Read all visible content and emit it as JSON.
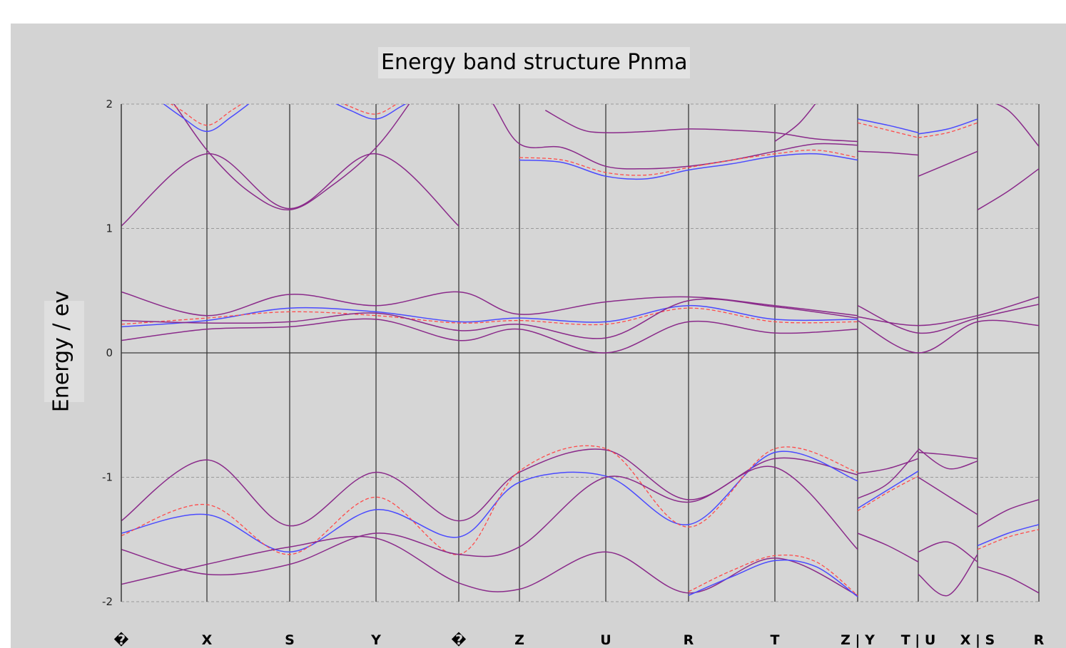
{
  "chart_data": {
    "type": "line",
    "title": "Energy band structure Pnma",
    "xlabel": "",
    "ylabel": "Energy / ev",
    "ylim": [
      -2,
      2
    ],
    "yticks": [
      "2",
      "1",
      "0",
      "-1",
      "-2"
    ],
    "ytick_values": [
      2,
      1,
      0,
      -1,
      -2
    ],
    "grid": "horizontal dashed",
    "legend": "none",
    "colors": {
      "series_a": "#4a4aff",
      "series_b": "#ff4a4a",
      "overlap": "#8a2a8a"
    },
    "kpath_labels": [
      "�",
      "X",
      "S",
      "Y",
      "�",
      "Z",
      "U",
      "R",
      "T",
      "Z | Y",
      "T | U",
      "X | S",
      "R"
    ],
    "kpath_positions": [
      0,
      1,
      2,
      3,
      4,
      5,
      6,
      7,
      8,
      9,
      10,
      11,
      12
    ],
    "bands": [
      {
        "line": "solid",
        "color": "overlap",
        "x": [
          0,
          1,
          2,
          3,
          4
        ],
        "y": [
          1.02,
          1.6,
          1.16,
          1.6,
          1.02
        ]
      },
      {
        "line": "solid",
        "color": "overlap",
        "x": [
          0,
          0.5,
          1,
          1.5,
          2,
          2.5,
          3,
          3.4,
          3.7
        ],
        "y": [
          2.4,
          2.1,
          1.63,
          1.3,
          1.15,
          1.35,
          1.65,
          2.0,
          2.3
        ]
      },
      {
        "line": "solid",
        "color": "series_a",
        "x": [
          0.4,
          0.7,
          1,
          1.3,
          1.6
        ],
        "y": [
          2.05,
          1.9,
          1.78,
          1.9,
          2.05
        ]
      },
      {
        "line": "dashed",
        "color": "series_b",
        "x": [
          0.4,
          0.7,
          1,
          1.3,
          1.6
        ],
        "y": [
          2.08,
          1.95,
          1.83,
          1.95,
          2.08
        ]
      },
      {
        "line": "solid",
        "color": "series_a",
        "x": [
          2.4,
          2.7,
          3,
          3.3,
          3.6
        ],
        "y": [
          2.05,
          1.95,
          1.88,
          1.98,
          2.1
        ]
      },
      {
        "line": "dashed",
        "color": "series_b",
        "x": [
          2.4,
          2.7,
          3,
          3.3,
          3.6
        ],
        "y": [
          2.08,
          1.98,
          1.92,
          2.02,
          2.12
        ]
      },
      {
        "line": "solid",
        "color": "overlap",
        "x": [
          4,
          4.5,
          5,
          5.5,
          6,
          6.5,
          7,
          7.5,
          8,
          8.5,
          9
        ],
        "y": [
          2.3,
          2.05,
          1.68,
          1.65,
          1.5,
          1.48,
          1.5,
          1.55,
          1.62,
          1.68,
          1.67
        ]
      },
      {
        "line": "solid",
        "color": "series_a",
        "x": [
          5,
          5.5,
          6,
          6.5,
          7,
          7.5,
          8,
          8.5,
          9
        ],
        "y": [
          1.55,
          1.53,
          1.42,
          1.4,
          1.47,
          1.52,
          1.58,
          1.6,
          1.55
        ]
      },
      {
        "line": "dashed",
        "color": "series_b",
        "x": [
          5,
          5.5,
          6,
          6.5,
          7,
          7.5,
          8,
          8.5,
          9
        ],
        "y": [
          1.57,
          1.55,
          1.45,
          1.43,
          1.49,
          1.55,
          1.6,
          1.63,
          1.57
        ]
      },
      {
        "line": "solid",
        "color": "overlap",
        "x": [
          5.3,
          5.7,
          6,
          6.5,
          7,
          7.5,
          8,
          8.5,
          9
        ],
        "y": [
          1.95,
          1.8,
          1.77,
          1.78,
          1.8,
          1.79,
          1.77,
          1.72,
          1.7
        ]
      },
      {
        "line": "solid",
        "color": "overlap",
        "x": [
          8,
          8.3,
          8.6
        ],
        "y": [
          1.7,
          1.85,
          2.1
        ]
      },
      {
        "line": "solid",
        "color": "series_a",
        "x": [
          9,
          9.5,
          10
        ],
        "y": [
          1.88,
          1.83,
          1.77
        ]
      },
      {
        "line": "dashed",
        "color": "series_b",
        "x": [
          9,
          9.5,
          10
        ],
        "y": [
          1.85,
          1.79,
          1.73
        ]
      },
      {
        "line": "solid",
        "color": "overlap",
        "x": [
          9,
          9.5,
          10
        ],
        "y": [
          1.62,
          1.61,
          1.59
        ]
      },
      {
        "line": "solid",
        "color": "overlap",
        "x": [
          10,
          10.5,
          11
        ],
        "y": [
          1.42,
          1.52,
          1.62
        ]
      },
      {
        "line": "solid",
        "color": "series_a",
        "x": [
          10,
          10.5,
          11
        ],
        "y": [
          1.76,
          1.8,
          1.88
        ]
      },
      {
        "line": "dashed",
        "color": "series_b",
        "x": [
          10,
          10.5,
          11
        ],
        "y": [
          1.73,
          1.77,
          1.85
        ]
      },
      {
        "line": "solid",
        "color": "overlap",
        "x": [
          11,
          11.5,
          12
        ],
        "y": [
          1.15,
          1.3,
          1.48
        ]
      },
      {
        "line": "solid",
        "color": "overlap",
        "x": [
          11,
          11.5,
          12
        ],
        "y": [
          2.05,
          1.95,
          1.66
        ]
      },
      {
        "line": "solid",
        "color": "overlap",
        "x": [
          0,
          1,
          2,
          3,
          4,
          5,
          6,
          7,
          8,
          9
        ],
        "y": [
          0.49,
          0.3,
          0.47,
          0.38,
          0.49,
          0.31,
          0.41,
          0.45,
          0.38,
          0.3
        ]
      },
      {
        "line": "solid",
        "color": "series_a",
        "x": [
          0,
          1,
          2,
          3,
          4,
          5,
          6,
          7,
          8,
          9
        ],
        "y": [
          0.21,
          0.26,
          0.36,
          0.33,
          0.25,
          0.28,
          0.25,
          0.38,
          0.27,
          0.27
        ]
      },
      {
        "line": "dashed",
        "color": "series_b",
        "x": [
          0,
          1,
          2,
          3,
          4,
          5,
          6,
          7,
          8,
          9
        ],
        "y": [
          0.23,
          0.28,
          0.33,
          0.3,
          0.24,
          0.26,
          0.23,
          0.36,
          0.25,
          0.25
        ]
      },
      {
        "line": "solid",
        "color": "overlap",
        "x": [
          0,
          1,
          2,
          3,
          4,
          5,
          6,
          7,
          8,
          9
        ],
        "y": [
          0.1,
          0.19,
          0.21,
          0.27,
          0.1,
          0.19,
          0.0,
          0.25,
          0.16,
          0.19
        ]
      },
      {
        "line": "solid",
        "color": "overlap",
        "x": [
          0,
          1,
          2,
          3,
          4,
          5,
          6,
          7,
          8,
          9
        ],
        "y": [
          0.26,
          0.24,
          0.25,
          0.32,
          0.18,
          0.23,
          0.12,
          0.42,
          0.37,
          0.28
        ]
      },
      {
        "line": "solid",
        "color": "overlap",
        "x": [
          9,
          10,
          11,
          12
        ],
        "y": [
          0.38,
          0.16,
          0.28,
          0.39
        ]
      },
      {
        "line": "solid",
        "color": "overlap",
        "x": [
          9,
          10,
          11,
          12
        ],
        "y": [
          0.29,
          0.22,
          0.3,
          0.45
        ]
      },
      {
        "line": "solid",
        "color": "overlap",
        "x": [
          9,
          10,
          11,
          12
        ],
        "y": [
          0.26,
          0.0,
          0.25,
          0.22
        ]
      },
      {
        "line": "solid",
        "color": "overlap",
        "x": [
          0,
          1,
          2,
          3,
          4,
          5,
          6,
          7,
          8,
          9
        ],
        "y": [
          -1.35,
          -0.86,
          -1.39,
          -0.96,
          -1.35,
          -0.96,
          -0.78,
          -1.18,
          -0.85,
          -0.98
        ]
      },
      {
        "line": "solid",
        "color": "series_a",
        "x": [
          0,
          1,
          2,
          3,
          4,
          5,
          6,
          7,
          8,
          9
        ],
        "y": [
          -1.45,
          -1.3,
          -1.6,
          -1.26,
          -1.48,
          -1.04,
          -0.99,
          -1.38,
          -0.8,
          -1.03
        ]
      },
      {
        "line": "dashed",
        "color": "series_b",
        "x": [
          0,
          1,
          2,
          3,
          4,
          5,
          6,
          7,
          8,
          9
        ],
        "y": [
          -1.47,
          -1.22,
          -1.62,
          -1.16,
          -1.62,
          -0.95,
          -0.77,
          -1.4,
          -0.77,
          -0.96
        ]
      },
      {
        "line": "solid",
        "color": "overlap",
        "x": [
          0,
          1,
          2,
          3,
          4,
          5,
          6,
          7,
          8,
          9
        ],
        "y": [
          -1.58,
          -1.78,
          -1.7,
          -1.45,
          -1.62,
          -1.56,
          -1.0,
          -1.2,
          -0.92,
          -1.58
        ]
      },
      {
        "line": "solid",
        "color": "overlap",
        "x": [
          0,
          1,
          2,
          3,
          4,
          5,
          6,
          7,
          8,
          9
        ],
        "y": [
          -1.86,
          -1.7,
          -1.56,
          -1.49,
          -1.85,
          -1.9,
          -1.6,
          -1.93,
          -1.65,
          -1.95
        ]
      },
      {
        "line": "dashed",
        "color": "series_b",
        "x": [
          7,
          7.5,
          8,
          8.5,
          9
        ],
        "y": [
          -1.92,
          -1.75,
          -1.63,
          -1.68,
          -1.95
        ]
      },
      {
        "line": "solid",
        "color": "series_a",
        "x": [
          7,
          7.5,
          8,
          8.5,
          9
        ],
        "y": [
          -1.95,
          -1.8,
          -1.67,
          -1.72,
          -1.96
        ]
      },
      {
        "line": "solid",
        "color": "overlap",
        "x": [
          9,
          9.5,
          10
        ],
        "y": [
          -0.97,
          -0.93,
          -0.85
        ]
      },
      {
        "line": "solid",
        "color": "overlap",
        "x": [
          9,
          9.5,
          10
        ],
        "y": [
          -1.17,
          -1.05,
          -0.78
        ]
      },
      {
        "line": "solid",
        "color": "series_a",
        "x": [
          9,
          9.5,
          10
        ],
        "y": [
          -1.25,
          -1.1,
          -0.95
        ]
      },
      {
        "line": "dashed",
        "color": "series_b",
        "x": [
          9,
          9.5,
          10
        ],
        "y": [
          -1.27,
          -1.12,
          -0.99
        ]
      },
      {
        "line": "solid",
        "color": "overlap",
        "x": [
          9,
          9.5,
          10
        ],
        "y": [
          -1.45,
          -1.55,
          -1.68
        ]
      },
      {
        "line": "solid",
        "color": "overlap",
        "x": [
          10,
          10.5,
          11
        ],
        "y": [
          -0.77,
          -0.93,
          -0.87
        ]
      },
      {
        "line": "solid",
        "color": "overlap",
        "x": [
          10,
          10.5,
          11
        ],
        "y": [
          -0.8,
          -0.82,
          -0.85
        ]
      },
      {
        "line": "solid",
        "color": "overlap",
        "x": [
          10,
          10.5,
          11
        ],
        "y": [
          -1.0,
          -1.15,
          -1.3
        ]
      },
      {
        "line": "solid",
        "color": "overlap",
        "x": [
          10,
          10.5,
          11
        ],
        "y": [
          -1.6,
          -1.52,
          -1.68
        ]
      },
      {
        "line": "solid",
        "color": "overlap",
        "x": [
          10,
          10.5,
          11
        ],
        "y": [
          -1.78,
          -1.95,
          -1.62
        ]
      },
      {
        "line": "solid",
        "color": "overlap",
        "x": [
          11,
          11.5,
          12
        ],
        "y": [
          -1.4,
          -1.26,
          -1.18
        ]
      },
      {
        "line": "solid",
        "color": "series_a",
        "x": [
          11,
          11.5,
          12
        ],
        "y": [
          -1.55,
          -1.45,
          -1.38
        ]
      },
      {
        "line": "dashed",
        "color": "series_b",
        "x": [
          11,
          11.5,
          12
        ],
        "y": [
          -1.58,
          -1.48,
          -1.42
        ]
      },
      {
        "line": "solid",
        "color": "overlap",
        "x": [
          11,
          11.5,
          12
        ],
        "y": [
          -1.72,
          -1.8,
          -1.93
        ]
      }
    ]
  }
}
